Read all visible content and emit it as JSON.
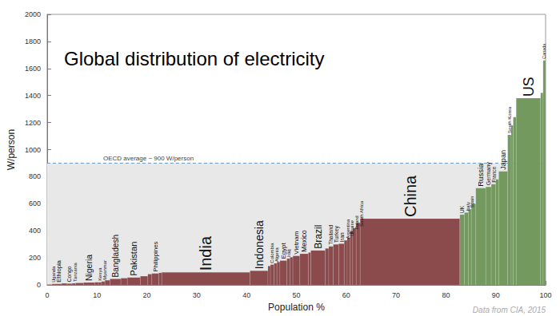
{
  "chart_data": {
    "type": "bar",
    "title": "Global distribution of electricity",
    "x_label": "Population %",
    "y_label": "W/person",
    "categories": [
      null,
      "Uganda",
      "Ethiopia",
      null,
      "Congo",
      "Tanzania",
      null,
      "Nigeria",
      null,
      "Kenya",
      "Myanmar",
      null,
      "Bangladesh",
      null,
      "Pakistan",
      null,
      null,
      "Philippines",
      null,
      "India",
      "Indonesia",
      null,
      "Colombia",
      "Algeria",
      null,
      "Egypt",
      "Iraq",
      null,
      "Vietnam",
      "Mexico",
      null,
      "Brazil",
      null,
      "Thailand",
      "Turkey",
      "Iran",
      "Argentina",
      "Ukraine",
      "Poland",
      "South Africa",
      null,
      "China",
      "UK",
      "Italy",
      "Spain",
      null,
      "Russia",
      "Germany",
      "France",
      null,
      "Japan",
      "South Korea",
      null,
      null,
      "US",
      null,
      "Canada"
    ],
    "bins": [
      0,
      1,
      1.6,
      2.9,
      4.0,
      5.0,
      5.7,
      7.3,
      9.6,
      10.3,
      10.9,
      11.6,
      12.6,
      14.8,
      16.1,
      18.7,
      20.2,
      21.0,
      22.4,
      23.0,
      40.7,
      44.3,
      44.8,
      45.5,
      46.1,
      46.7,
      48.1,
      48.7,
      49.3,
      50.7,
      52.4,
      52.9,
      55.8,
      56.5,
      57.4,
      58.5,
      59.6,
      60.2,
      60.8,
      61.3,
      62.0,
      62.8,
      82.8,
      83.7,
      84.5,
      85.1,
      86.0,
      88.0,
      89.1,
      90.0,
      90.6,
      92.4,
      93.1,
      93.5,
      94.1,
      99.0,
      99.5,
      100
    ],
    "values": [
      3,
      8,
      8,
      12,
      10,
      12,
      15,
      18,
      20,
      20,
      25,
      35,
      45,
      50,
      55,
      65,
      80,
      85,
      90,
      93,
      105,
      140,
      150,
      160,
      170,
      180,
      195,
      205,
      215,
      230,
      240,
      255,
      270,
      285,
      300,
      305,
      330,
      350,
      400,
      420,
      460,
      490,
      520,
      535,
      560,
      600,
      715,
      725,
      745,
      780,
      840,
      1110,
      1180,
      1240,
      1380,
      1420,
      1660
    ],
    "colors": [
      "#8b4a4c",
      "#8b4a4c",
      "#8b4a4c",
      "#8b4a4c",
      "#8b4a4c",
      "#8b4a4c",
      "#8b4a4c",
      "#8b4a4c",
      "#8b4a4c",
      "#8b4a4c",
      "#8b4a4c",
      "#8b4a4c",
      "#8b4a4c",
      "#8b4a4c",
      "#8b4a4c",
      "#8b4a4c",
      "#8b4a4c",
      "#8b4a4c",
      "#8b4a4c",
      "#8b4a4c",
      "#8b4a4c",
      "#8b4a4c",
      "#8b4a4c",
      "#8b4a4c",
      "#8b4a4c",
      "#8b4a4c",
      "#8b4a4c",
      "#8b4a4c",
      "#8b4a4c",
      "#8b4a4c",
      "#8b4a4c",
      "#8b4a4c",
      "#8b4a4c",
      "#8b4a4c",
      "#8b4a4c",
      "#8b4a4c",
      "#8b4a4c",
      "#8b4a4c",
      "#8b4a4c",
      "#8b4a4c",
      "#8b4a4c",
      "#8b4a4c",
      "#73995f",
      "#73995f",
      "#73995f",
      "#73995f",
      "#73995f",
      "#73995f",
      "#73995f",
      "#73995f",
      "#73995f",
      "#73995f",
      "#73995f",
      "#73995f",
      "#73995f",
      "#73995f",
      "#73995f"
    ],
    "xlim": [
      0,
      100
    ],
    "xticks": [
      0,
      10,
      20,
      30,
      40,
      50,
      60,
      70,
      80,
      90,
      100
    ],
    "ylim": [
      0,
      2000
    ],
    "yticks": [
      0,
      200,
      400,
      600,
      800,
      1000,
      1200,
      1400,
      1600,
      1800,
      2000
    ],
    "grid": false,
    "annotations": [
      {
        "text": "OECD average ~ 900 W/person",
        "y": 900
      },
      {
        "text": "Data from CIA, 2015"
      }
    ]
  }
}
